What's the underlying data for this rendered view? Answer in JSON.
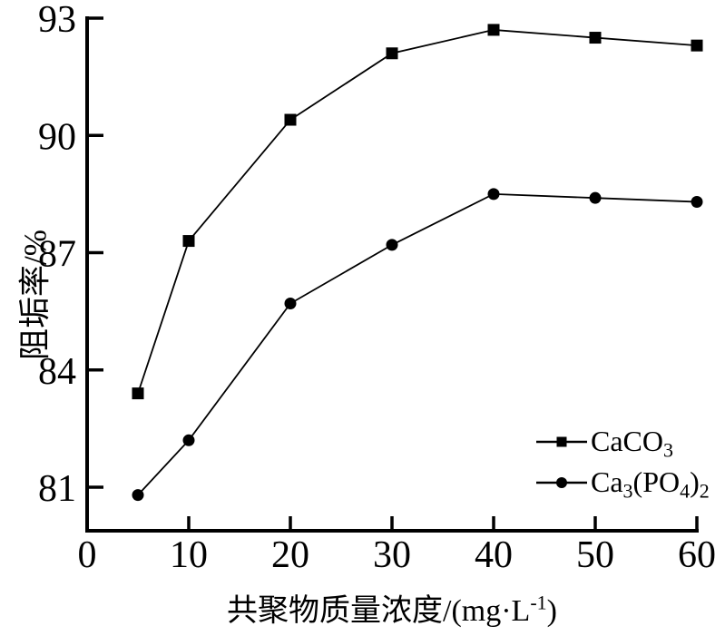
{
  "colors": {
    "foreground": "#000000",
    "background": "#ffffff"
  },
  "chart_data": {
    "type": "line",
    "title": "",
    "xlabel": "共聚物质量浓度/(mg·L⁻¹)",
    "xlabel_parts": {
      "prefix": "共聚物质量浓度/(mg·L",
      "sup": "-1",
      "suffix": ")"
    },
    "ylabel": "阻垢率/%",
    "xlim": [
      0,
      60
    ],
    "ylim": [
      79.9,
      93
    ],
    "x_ticks": [
      0,
      10,
      20,
      30,
      40,
      50,
      60
    ],
    "y_ticks": [
      81,
      84,
      87,
      90,
      93
    ],
    "grid": false,
    "legend_position": "lower-right",
    "x": [
      5,
      10,
      20,
      30,
      40,
      50,
      60
    ],
    "series": [
      {
        "id": "caco3",
        "name": "CaCO3",
        "marker": "square",
        "values": [
          83.4,
          87.3,
          90.4,
          92.1,
          92.7,
          92.5,
          92.3
        ],
        "label_parts": [
          {
            "text": "CaCO",
            "sub": false
          },
          {
            "text": "3",
            "sub": true
          }
        ]
      },
      {
        "id": "ca3po42",
        "name": "Ca3(PO4)2",
        "marker": "circle",
        "values": [
          80.8,
          82.2,
          85.7,
          87.2,
          88.5,
          88.4,
          88.3
        ],
        "label_parts": [
          {
            "text": "Ca",
            "sub": false
          },
          {
            "text": "3",
            "sub": true
          },
          {
            "text": "(PO",
            "sub": false
          },
          {
            "text": "4",
            "sub": true
          },
          {
            "text": ")",
            "sub": false
          },
          {
            "text": "2",
            "sub": true
          }
        ]
      }
    ]
  }
}
